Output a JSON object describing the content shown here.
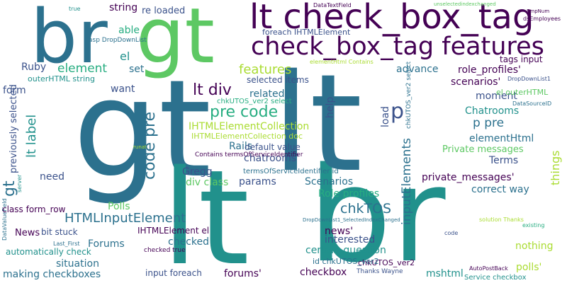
{
  "palette": {
    "background": "#ffffff",
    "dark_purple": "#440154",
    "navy": "#3b528b",
    "steel_blue": "#2c718e",
    "teal": "#21918c",
    "green": "#27ad81",
    "light_green": "#5dc863",
    "lime": "#aadc32",
    "yellow": "#fde725"
  },
  "words": [
    "gt",
    "lt",
    "br",
    "lt check_box_tag",
    "check_box_tag features",
    "pre code",
    "p",
    "features",
    "lt div",
    "element",
    "able",
    "string",
    "re loaded",
    "foreach IHTMLElement",
    "asp DropDownList",
    "el",
    "Ruby",
    "set",
    "outerHTML string",
    "want",
    "form",
    "previously selected",
    "lt label",
    "need",
    "code pre",
    "Rails",
    "IHTMLElementCollection",
    "IHTMLElementCollection doc",
    "related",
    "selected items",
    "advance",
    "role_profiles'",
    "scenarios'",
    "moment",
    "Chatrooms",
    "p pre",
    "elementHtml",
    "Private messages",
    "Terms",
    "private_messages'",
    "correct way",
    "chkTOS",
    "inputElements",
    "HTMLInputElement",
    "Polls",
    "Gregg",
    "div class",
    "Role profiles",
    "Scenarios",
    "params",
    "default value",
    "chatrooms'",
    "termsOfServiceIdentifier id",
    "Contains termsOfServiceIdentifier",
    "news'",
    "interested",
    "certain question",
    "chkUTOS_ver2",
    "id chkUTOS_ver2",
    "forums'",
    "checkbox",
    "mshtml",
    "polls'",
    "nothing",
    "things",
    "News",
    "bit stuck",
    "Forums",
    "checked",
    "situation",
    "making checkboxes",
    "automatically check",
    "class form_row",
    "IHTMLElement el",
    "checked true",
    "input foreach",
    "Thanks Wayne",
    "Service checkbox",
    "AutoPostBack",
    "existing",
    "code",
    "solution Thanks",
    "DropDownList1_SelectedIndexChanged",
    "Last_First",
    "DataValueField",
    "server",
    "runat",
    "DataSourceID",
    "DropDownList1",
    "dsEmployees",
    "EmpNum",
    "DataTextField",
    "unselectedindexchanged",
    "true",
    "tags input",
    "el outerHTML",
    "chkUTOS_ver2 select",
    "elementHtml Contains",
    "help",
    "load"
  ]
}
